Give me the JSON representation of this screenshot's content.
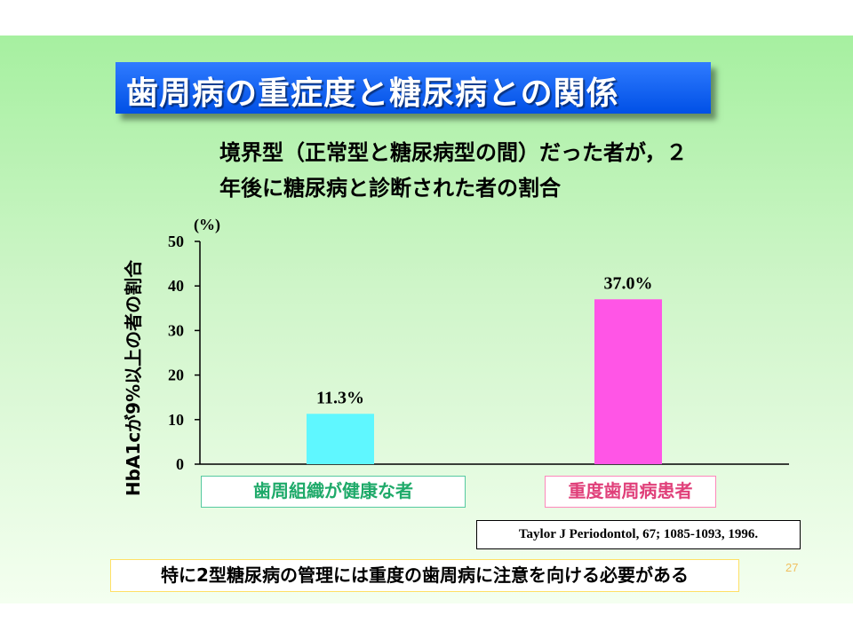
{
  "title": "歯周病の重症度と糖尿病との関係",
  "subtitle_lines": [
    "境界型（正常型と糖尿病型の間）だった者が，２",
    "年後に糖尿病と診断された者の割合"
  ],
  "reference": "Taylor  J Periodontol, 67; 1085-1093, 1996.",
  "note": "特に2型糖尿病の管理には重度の歯周病に注意を向ける必要がある",
  "page_number": "27",
  "colors": {
    "title_bg": "#0050e6",
    "bar_healthy": "#5ff7ff",
    "bar_severe": "#ff55e6",
    "label_healthy": "#1faa6a",
    "label_severe": "#e0407a"
  },
  "chart_data": {
    "type": "bar",
    "ylabel": "HbA1cが9%以上の者の割合",
    "yunit": "(%)",
    "ylim": [
      0,
      50
    ],
    "yticks": [
      "0",
      "10",
      "20",
      "30",
      "40",
      "50"
    ],
    "categories": [
      "歯周組織が健康な者",
      "重度歯周病患者"
    ],
    "values": [
      11.3,
      37.0
    ],
    "data_labels": [
      "11.3%",
      "37.0%"
    ],
    "grid": false
  }
}
